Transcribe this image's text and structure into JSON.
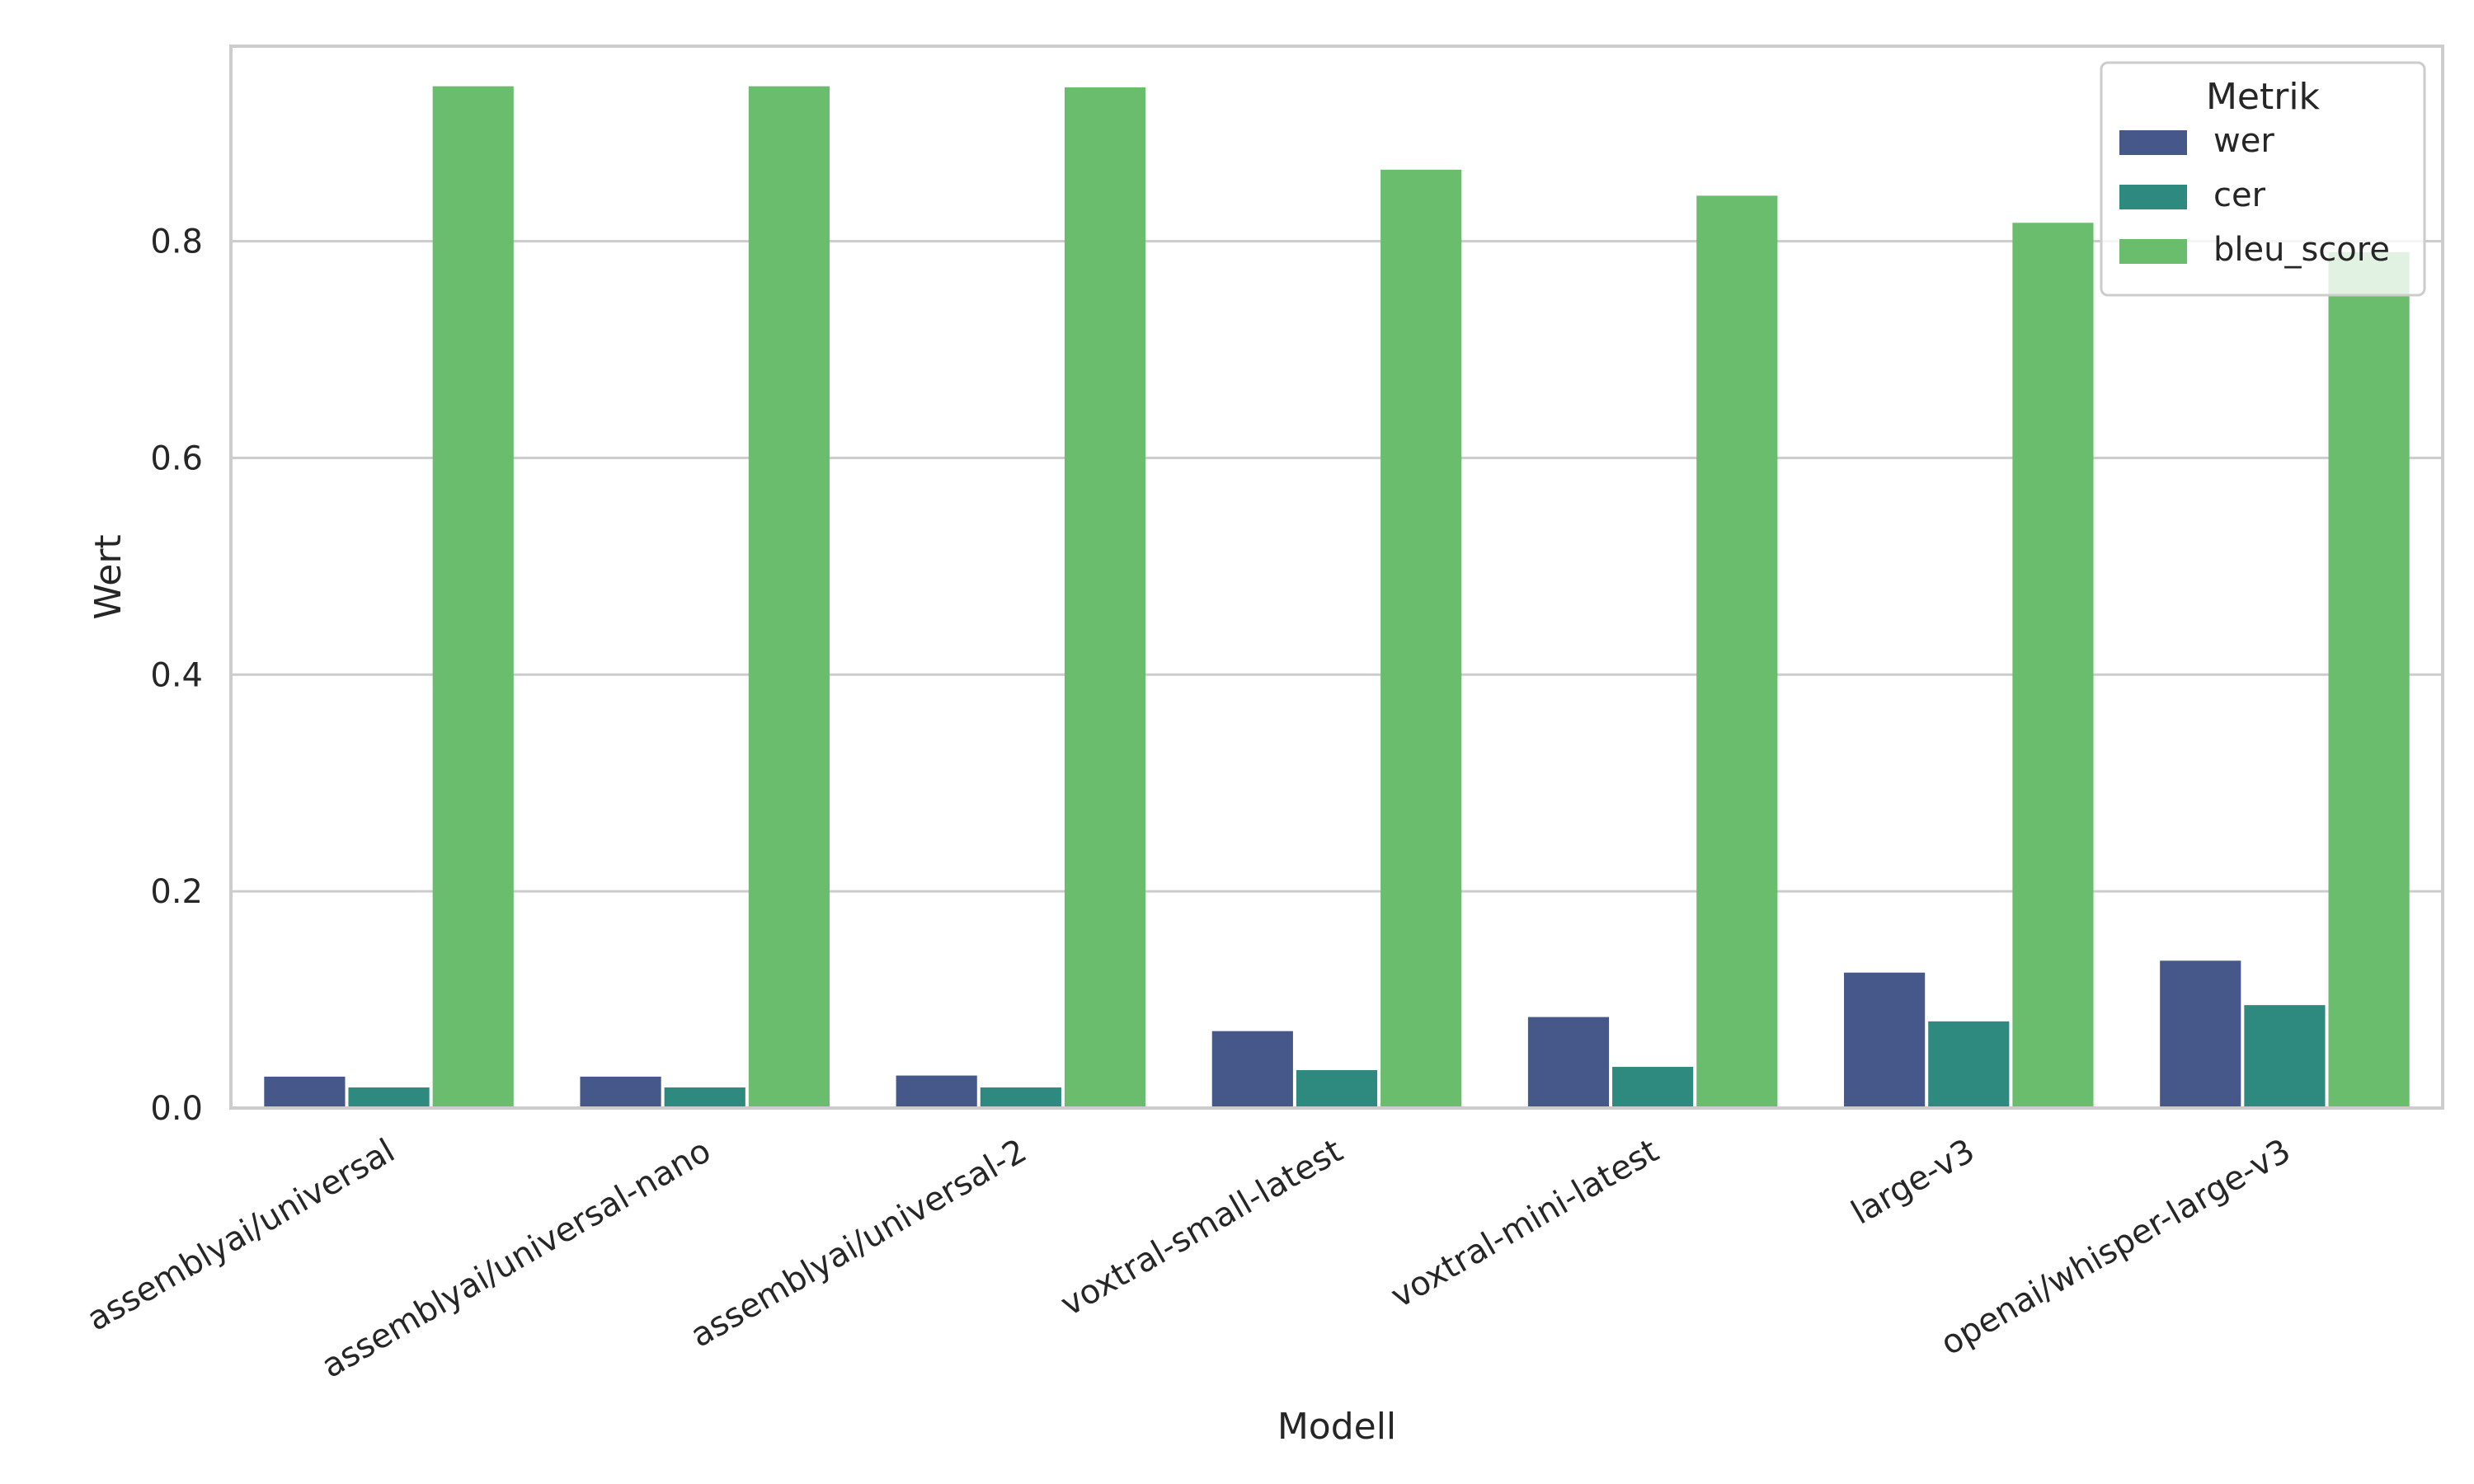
{
  "chart_data": {
    "type": "bar",
    "title": "",
    "xlabel": "Modell",
    "ylabel": "Wert",
    "ylim": [
      0,
      0.98
    ],
    "yticks": [
      "0.0",
      "0.2",
      "0.4",
      "0.6",
      "0.8"
    ],
    "grid": true,
    "legend": {
      "title": "Metrik",
      "placement": "top-right"
    },
    "categories": [
      "assemblyai/universal",
      "assemblyai/universal-nano",
      "assemblyai/universal-2",
      "voxtral-small-latest",
      "voxtral-mini-latest",
      "large-v3",
      "openai/whisper-large-v3"
    ],
    "series": [
      {
        "name": "wer",
        "color": "#46578a",
        "values": [
          0.029,
          0.029,
          0.03,
          0.071,
          0.084,
          0.125,
          0.136
        ]
      },
      {
        "name": "cer",
        "color": "#2e8a7e",
        "values": [
          0.019,
          0.019,
          0.019,
          0.035,
          0.038,
          0.08,
          0.095
        ]
      },
      {
        "name": "bleu_score",
        "color": "#6abd6d",
        "values": [
          0.943,
          0.943,
          0.942,
          0.866,
          0.842,
          0.817,
          0.79
        ]
      }
    ]
  }
}
